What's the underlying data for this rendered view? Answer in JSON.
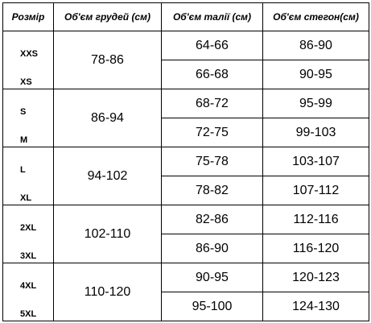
{
  "headers": [
    "Розмір",
    "Об'єм грудей (см)",
    "Об'єм талії (см)",
    "Об'єм стегон(см)"
  ],
  "groups": [
    {
      "chest": "78-86",
      "rows": [
        {
          "size": "XXS",
          "waist": "64-66",
          "hips": "86-90"
        },
        {
          "size": "XS",
          "waist": "66-68",
          "hips": "90-95"
        }
      ]
    },
    {
      "chest": "86-94",
      "rows": [
        {
          "size": "S",
          "waist": "68-72",
          "hips": "95-99"
        },
        {
          "size": "M",
          "waist": "72-75",
          "hips": "99-103"
        }
      ]
    },
    {
      "chest": "94-102",
      "rows": [
        {
          "size": "L",
          "waist": "75-78",
          "hips": "103-107"
        },
        {
          "size": "XL",
          "waist": "78-82",
          "hips": "107-112"
        }
      ]
    },
    {
      "chest": "102-110",
      "rows": [
        {
          "size": "2XL",
          "waist": "82-86",
          "hips": "112-116"
        },
        {
          "size": "3XL",
          "waist": "86-90",
          "hips": "116-120"
        }
      ]
    },
    {
      "chest": "110-120",
      "rows": [
        {
          "size": "4XL",
          "waist": "90-95",
          "hips": "120-123"
        },
        {
          "size": "5XL",
          "waist": "95-100",
          "hips": "124-130"
        }
      ]
    }
  ]
}
